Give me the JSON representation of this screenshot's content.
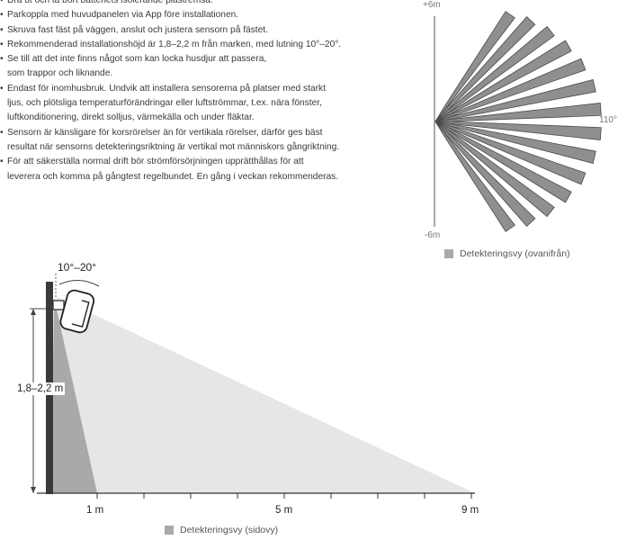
{
  "instructions": [
    "Dra ut och ta bort batteriets isolerande plastremsa.",
    "Parkoppla med huvudpanelen via App före installationen.",
    "Skruva fast fäst på väggen, anslut och justera sensorn på fästet.",
    "Rekommenderad installationshöjd är 1,8–2,2 m från marken, med lutning 10°–20°.",
    "Se till att det inte finns något som kan locka husdjur att passera,\nsom trappor och liknande.",
    "Endast för inomhusbruk. Undvik att installera sensorerna på platser med starkt\nljus, och plötsliga temperaturförändringar eller luftströmmar, t.ex. nära fönster,\nluftkonditionering, direkt solljus, värmekälla och under fläktar.",
    "Sensorn är känsligare för korsrörelser än för vertikala rörelser, därför ges bäst\nresultat när sensorns detekteringsriktning är vertikal mot människors gångriktning.",
    "För att säkerställa normal drift bör strömförsörjningen upprätthållas för att\nleverera och komma på gångtest regelbundet. En gång i veckan rekommenderas."
  ],
  "top_view": {
    "top_label": "+6m",
    "bottom_label": "-6m",
    "angle_label": "110°",
    "legend": "Detekteringsvy (ovanifrån)",
    "beam_count": 14,
    "fill_color": "#8f8f8f"
  },
  "side_view": {
    "angle_label": "10°–20°",
    "height_label": "1,8–2,2 m",
    "x_labels": [
      "1 m",
      "5 m",
      "9 m"
    ],
    "legend": "Detekteringsvy (sidovy)",
    "near_zone_color": "#a8a8a8",
    "far_zone_color": "#e4e4e4"
  }
}
